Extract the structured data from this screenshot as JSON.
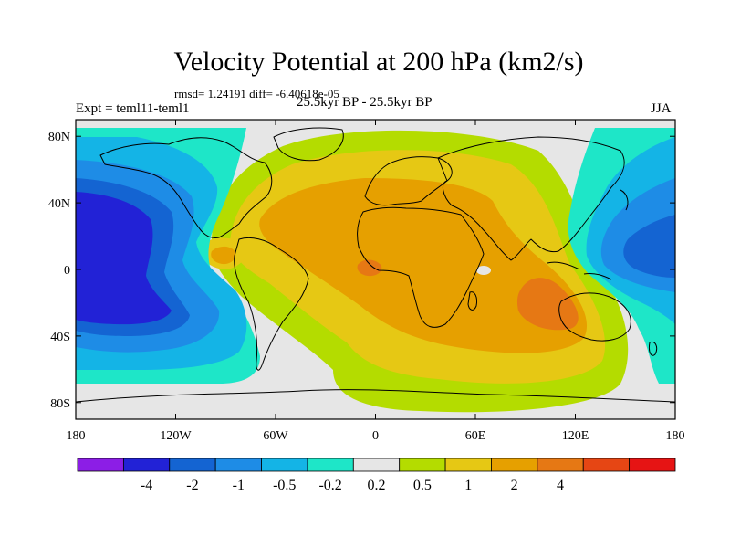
{
  "title": "Velocity Potential at 200 hPa (km2/s)",
  "stats": "rmsd= 1.24191 diff= -6.40618e-05",
  "left_label": "Expt = teml11-teml1",
  "center_label": "25.5kyr BP - 25.5kyr BP",
  "right_label": "JJA",
  "lat_ticks": [
    {
      "label": "80N",
      "value": 80
    },
    {
      "label": "40N",
      "value": 40
    },
    {
      "label": "0",
      "value": 0
    },
    {
      "label": "40S",
      "value": -40
    },
    {
      "label": "80S",
      "value": -80
    }
  ],
  "lon_ticks": [
    {
      "label": "180",
      "value": -180
    },
    {
      "label": "120W",
      "value": -120
    },
    {
      "label": "60W",
      "value": -60
    },
    {
      "label": "0",
      "value": 0
    },
    {
      "label": "60E",
      "value": 60
    },
    {
      "label": "120E",
      "value": 120
    },
    {
      "label": "180",
      "value": 180
    }
  ],
  "colorbar": {
    "colors": [
      "#8c1ee6",
      "#2222d6",
      "#1464d2",
      "#1e8ce6",
      "#14b4e6",
      "#1ee6c8",
      "#e6e6e6",
      "#b4dc00",
      "#e6c814",
      "#e6a000",
      "#e67814",
      "#e64614",
      "#e61414"
    ],
    "labels": [
      "-4",
      "-2",
      "-1",
      "-0.5",
      "-0.2",
      "0.2",
      "0.5",
      "1",
      "2",
      "4"
    ]
  }
}
